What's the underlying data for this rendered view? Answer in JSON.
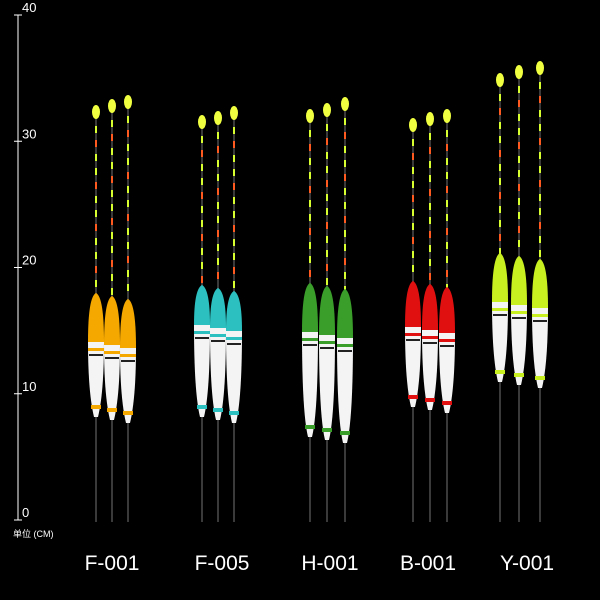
{
  "ruler": {
    "unit_label": "单位 (CM)",
    "ticks": [
      0,
      10,
      20,
      30,
      40
    ]
  },
  "products": [
    {
      "label": "F-001"
    },
    {
      "label": "F-005"
    },
    {
      "label": "H-001"
    },
    {
      "label": "B-001"
    },
    {
      "label": "Y-001"
    }
  ]
}
